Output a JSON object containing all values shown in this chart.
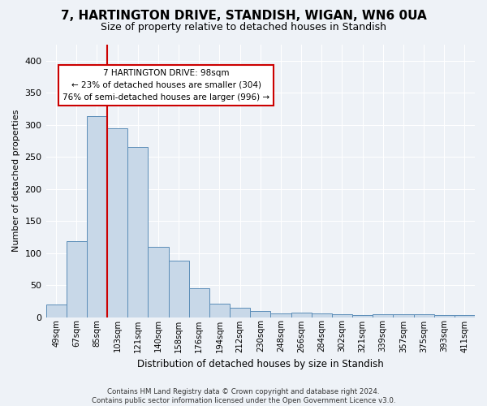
{
  "title": "7, HARTINGTON DRIVE, STANDISH, WIGAN, WN6 0UA",
  "subtitle": "Size of property relative to detached houses in Standish",
  "xlabel": "Distribution of detached houses by size in Standish",
  "ylabel": "Number of detached properties",
  "categories": [
    "49sqm",
    "67sqm",
    "85sqm",
    "103sqm",
    "121sqm",
    "140sqm",
    "158sqm",
    "176sqm",
    "194sqm",
    "212sqm",
    "230sqm",
    "248sqm",
    "266sqm",
    "284sqm",
    "302sqm",
    "321sqm",
    "339sqm",
    "357sqm",
    "375sqm",
    "393sqm",
    "411sqm"
  ],
  "values": [
    20,
    119,
    314,
    295,
    265,
    109,
    88,
    45,
    21,
    15,
    9,
    6,
    7,
    6,
    4,
    3,
    4,
    5,
    4,
    3,
    3
  ],
  "bar_color": "#c8d8e8",
  "bar_edge_color": "#5b8db8",
  "vline_x_index": 3,
  "vline_color": "#cc0000",
  "annotation_line1": "7 HARTINGTON DRIVE: 98sqm",
  "annotation_line2": "← 23% of detached houses are smaller (304)",
  "annotation_line3": "76% of semi-detached houses are larger (996) →",
  "annotation_box_edgecolor": "#cc0000",
  "background_color": "#eef2f7",
  "grid_color": "#ffffff",
  "footer_line1": "Contains HM Land Registry data © Crown copyright and database right 2024.",
  "footer_line2": "Contains public sector information licensed under the Open Government Licence v3.0.",
  "ylim": [
    0,
    425
  ],
  "yticks": [
    0,
    50,
    100,
    150,
    200,
    250,
    300,
    350,
    400
  ]
}
